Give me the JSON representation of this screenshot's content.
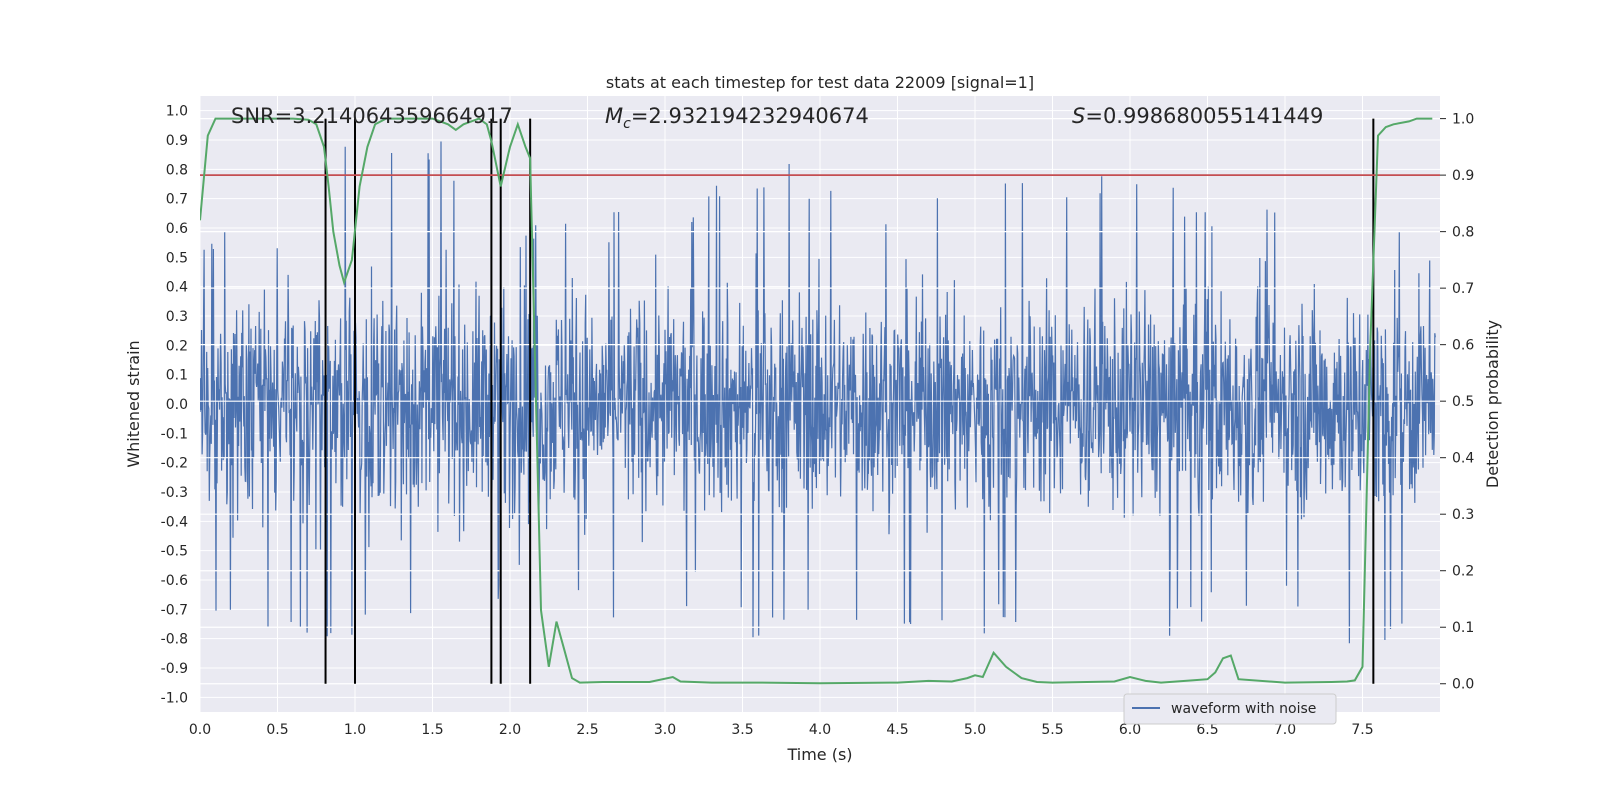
{
  "chart_data": {
    "type": "line",
    "title": "stats at each timestep for test data 22009 [signal=1]",
    "xlabel": "Time (s)",
    "ylabel": "Whitened strain",
    "y2label": "Detection probability",
    "xlim": [
      0.0,
      8.0
    ],
    "ylim": [
      -1.05,
      1.05
    ],
    "y2lim": [
      -0.05,
      1.04
    ],
    "x_ticks": [
      "0.0",
      "0.5",
      "1.0",
      "1.5",
      "2.0",
      "2.5",
      "3.0",
      "3.5",
      "4.0",
      "4.5",
      "5.0",
      "5.5",
      "6.0",
      "6.5",
      "7.0",
      "7.5"
    ],
    "y_ticks": [
      "1.0",
      "0.9",
      "0.8",
      "0.7",
      "0.6",
      "0.5",
      "0.4",
      "0.3",
      "0.2",
      "0.1",
      "0.0",
      "-0.1",
      "-0.2",
      "-0.3",
      "-0.4",
      "-0.5",
      "-0.6",
      "-0.7",
      "-0.8",
      "-0.9",
      "-1.0"
    ],
    "y2_ticks": [
      "1.0",
      "0.9",
      "0.8",
      "0.7",
      "0.6",
      "0.5",
      "0.4",
      "0.3",
      "0.2",
      "0.1",
      "0.0"
    ],
    "grid": true,
    "legend_position": "bottom-right",
    "annotations": {
      "snr": "SNR=3.214064359664917",
      "mc_symbol": "M",
      "mc_sub": "c",
      "mc_value": "=2.932194232940674",
      "s_symbol": "S",
      "s_value": "=0.998680055141449"
    },
    "threshold": 0.9,
    "vertical_lines": [
      0.81,
      1.0,
      1.88,
      1.94,
      2.13,
      7.57
    ],
    "colors": {
      "waveform": "#4c72b0",
      "probability": "#55a868",
      "threshold": "#c44e52",
      "vlines": "#000000",
      "background": "#eaeaf2",
      "grid": "#ffffff"
    },
    "series": [
      {
        "name": "waveform with noise",
        "description_kind": "noise",
        "sampled_envelope": {
          "x": [
            0.0,
            0.5,
            1.0,
            1.5,
            2.0,
            2.5,
            3.0,
            3.5,
            4.0,
            4.5,
            5.0,
            5.5,
            6.0,
            6.5,
            7.0,
            7.5,
            8.0
          ],
          "max": [
            0.6,
            0.6,
            0.95,
            0.95,
            0.6,
            0.7,
            0.6,
            0.85,
            0.8,
            0.7,
            0.88,
            0.75,
            0.8,
            0.7,
            0.75,
            0.86,
            0.5
          ],
          "min": [
            -0.68,
            -0.88,
            -0.8,
            -0.8,
            -0.7,
            -0.75,
            -0.7,
            -0.8,
            -0.8,
            -0.87,
            -0.8,
            -0.8,
            -0.92,
            -0.75,
            -0.7,
            -0.88,
            -0.68
          ]
        }
      },
      {
        "name": "",
        "axis": "right",
        "x": [
          0.0,
          0.05,
          0.1,
          0.15,
          0.2,
          0.6,
          0.7,
          0.75,
          0.8,
          0.83,
          0.86,
          0.9,
          0.93,
          0.98,
          1.03,
          1.08,
          1.13,
          1.2,
          1.5,
          1.6,
          1.65,
          1.7,
          1.8,
          1.85,
          1.88,
          1.94,
          2.0,
          2.05,
          2.1,
          2.13,
          2.15,
          2.2,
          2.25,
          2.3,
          2.35,
          2.4,
          2.45,
          2.6,
          2.9,
          3.05,
          3.1,
          3.3,
          3.6,
          4.0,
          4.5,
          4.7,
          4.85,
          4.95,
          5.0,
          5.05,
          5.12,
          5.2,
          5.3,
          5.4,
          5.5,
          5.9,
          6.0,
          6.1,
          6.2,
          6.4,
          6.5,
          6.55,
          6.6,
          6.65,
          6.7,
          7.0,
          7.3,
          7.4,
          7.45,
          7.5,
          7.55,
          7.6,
          7.65,
          7.7,
          7.8,
          7.85,
          7.9,
          7.95
        ],
        "values": [
          0.82,
          0.97,
          1.0,
          1.0,
          1.0,
          1.0,
          0.998,
          0.99,
          0.95,
          0.88,
          0.8,
          0.74,
          0.71,
          0.75,
          0.88,
          0.95,
          0.99,
          1.0,
          1.0,
          0.99,
          0.98,
          0.99,
          1.0,
          0.99,
          0.96,
          0.88,
          0.95,
          0.99,
          0.95,
          0.93,
          0.7,
          0.13,
          0.03,
          0.11,
          0.06,
          0.01,
          0.002,
          0.003,
          0.003,
          0.012,
          0.004,
          0.002,
          0.002,
          0.001,
          0.002,
          0.005,
          0.004,
          0.01,
          0.015,
          0.012,
          0.055,
          0.03,
          0.01,
          0.003,
          0.002,
          0.004,
          0.012,
          0.005,
          0.002,
          0.006,
          0.008,
          0.02,
          0.045,
          0.05,
          0.008,
          0.002,
          0.003,
          0.004,
          0.006,
          0.03,
          0.6,
          0.97,
          0.985,
          0.99,
          0.995,
          1.0,
          1.0,
          1.0
        ]
      }
    ]
  }
}
